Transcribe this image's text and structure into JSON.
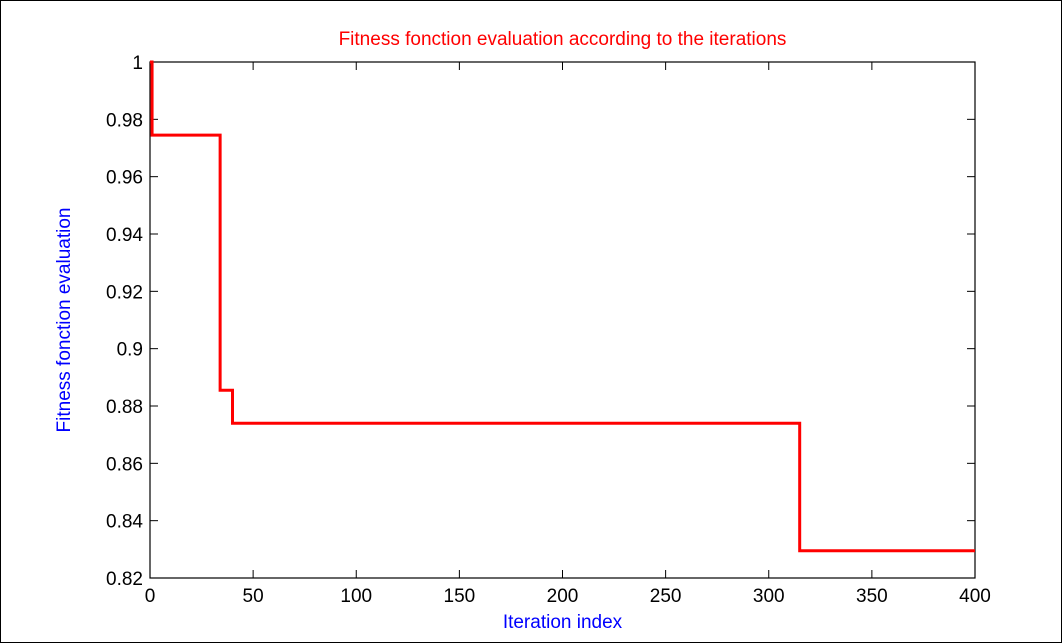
{
  "chart_data": {
    "type": "line",
    "title": "Fitness fonction evaluation according to the iterations",
    "xlabel": "Iteration index",
    "ylabel": "Fitness fonction evaluation",
    "xlim": [
      0,
      400
    ],
    "ylim": [
      0.82,
      1.0
    ],
    "xticks": [
      0,
      50,
      100,
      150,
      200,
      250,
      300,
      350,
      400
    ],
    "xtick_labels": [
      "0",
      "50",
      "100",
      "150",
      "200",
      "250",
      "300",
      "350",
      "400"
    ],
    "yticks": [
      0.82,
      0.84,
      0.86,
      0.88,
      0.9,
      0.92,
      0.94,
      0.96,
      0.98,
      1.0
    ],
    "ytick_labels": [
      "0.82",
      "0.84",
      "0.86",
      "0.88",
      "0.9",
      "0.92",
      "0.94",
      "0.96",
      "0.98",
      "1"
    ],
    "grid": false,
    "series": [
      {
        "color": "#ff0000",
        "x": [
          0,
          1,
          1,
          34,
          34,
          40,
          40,
          315,
          315,
          400
        ],
        "y": [
          1.0,
          1.0,
          0.9745,
          0.9745,
          0.8855,
          0.8855,
          0.874,
          0.874,
          0.8295,
          0.8295
        ]
      }
    ],
    "colors": {
      "title": "#ff0000",
      "axis_labels": "#0000ff",
      "axes": "#000000"
    }
  }
}
